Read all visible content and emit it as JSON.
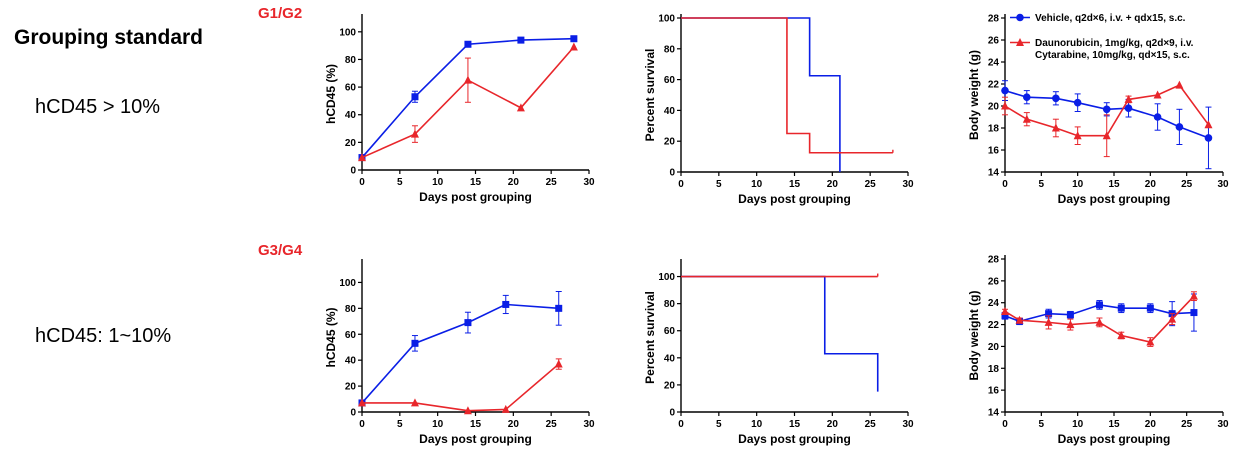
{
  "page": {
    "heading": "Grouping standard",
    "rows": [
      {
        "group_label": "G1/G2",
        "criterion": "hCD45 > 10%"
      },
      {
        "group_label": "G3/G4",
        "criterion": "hCD45: 1~10%"
      }
    ]
  },
  "colors": {
    "blue": "#0a1ee6",
    "red": "#e8262b",
    "group_label": "#e8262b"
  },
  "chart_data": [
    {
      "type": "line",
      "xlabel": "Days post grouping",
      "ylabel": "hCD45 (%)",
      "xlim": [
        0,
        30
      ],
      "xticks": [
        0,
        5,
        10,
        15,
        20,
        25,
        30
      ],
      "ylim": [
        0,
        110
      ],
      "yticks": [
        0,
        20,
        40,
        60,
        80,
        100
      ],
      "series": [
        {
          "color": "#0a1ee6",
          "marker": "square",
          "x": [
            0,
            7,
            14,
            21,
            28
          ],
          "y": [
            9,
            53,
            91,
            94,
            95
          ],
          "err": [
            1,
            4,
            2,
            1,
            0
          ]
        },
        {
          "color": "#e8262b",
          "marker": "triangle",
          "x": [
            0,
            7,
            14,
            21,
            28
          ],
          "y": [
            9,
            26,
            65,
            45,
            89
          ],
          "err": [
            0,
            6,
            16,
            0,
            0
          ]
        }
      ]
    },
    {
      "type": "line",
      "step": true,
      "xlabel": "Days post grouping",
      "ylabel": "Percent survival",
      "xlim": [
        0,
        30
      ],
      "xticks": [
        0,
        5,
        10,
        15,
        20,
        25,
        30
      ],
      "ylim": [
        0,
        100
      ],
      "yticks": [
        0,
        20,
        40,
        60,
        80,
        100
      ],
      "series": [
        {
          "color": "#0a1ee6",
          "x": [
            0,
            17,
            17,
            21,
            21
          ],
          "y": [
            100,
            100,
            62.5,
            62.5,
            0
          ]
        },
        {
          "color": "#e8262b",
          "x": [
            0,
            14,
            14,
            17,
            17,
            28
          ],
          "y": [
            100,
            100,
            25,
            25,
            12.5,
            12.5
          ]
        }
      ]
    },
    {
      "type": "line",
      "xlabel": "Days post grouping",
      "ylabel": "Body weight (g)",
      "xlim": [
        0,
        30
      ],
      "xticks": [
        0,
        5,
        10,
        15,
        20,
        25,
        30
      ],
      "ylim": [
        14,
        28
      ],
      "yticks": [
        14,
        16,
        18,
        20,
        22,
        24,
        26,
        28
      ],
      "legend_position": "top",
      "series": [
        {
          "name": "Vehicle, q2d×6, i.v. + qdx15, s.c.",
          "color": "#0a1ee6",
          "marker": "circle",
          "x": [
            0,
            3,
            7,
            10,
            14,
            17,
            21,
            24,
            28
          ],
          "y": [
            21.4,
            20.8,
            20.7,
            20.3,
            19.7,
            19.8,
            19.0,
            18.1,
            17.1
          ],
          "err": [
            0.9,
            0.6,
            0.6,
            0.8,
            0.6,
            0.8,
            1.2,
            1.6,
            2.8
          ]
        },
        {
          "name": "Daunorubicin, 1mg/kg, q2d×9, i.v.",
          "name_line2": "Cytarabine, 10mg/kg, qd×15, s.c.",
          "color": "#e8262b",
          "marker": "triangle",
          "x": [
            0,
            3,
            7,
            10,
            14,
            17,
            21,
            24,
            28
          ],
          "y": [
            20.0,
            18.8,
            18.0,
            17.3,
            17.3,
            20.6,
            21.0,
            21.9,
            18.3
          ],
          "err": [
            0.8,
            0.6,
            0.8,
            0.8,
            1.9,
            0.3,
            0.0,
            0.0,
            0.0
          ]
        }
      ]
    },
    {
      "type": "line",
      "xlabel": "Days post grouping",
      "ylabel": "hCD45 (%)",
      "xlim": [
        0,
        30
      ],
      "xticks": [
        0,
        5,
        10,
        15,
        20,
        25,
        30
      ],
      "ylim": [
        0,
        115
      ],
      "yticks": [
        0,
        20,
        40,
        60,
        80,
        100
      ],
      "series": [
        {
          "color": "#0a1ee6",
          "marker": "square",
          "x": [
            0,
            7,
            14,
            19,
            26
          ],
          "y": [
            7,
            53,
            69,
            83,
            80
          ],
          "err": [
            0,
            6,
            8,
            7,
            13
          ]
        },
        {
          "color": "#e8262b",
          "marker": "triangle",
          "x": [
            0,
            7,
            14,
            19,
            26
          ],
          "y": [
            7,
            7,
            1,
            2,
            37
          ],
          "err": [
            0,
            0,
            0,
            0,
            4
          ]
        }
      ]
    },
    {
      "type": "line",
      "step": true,
      "xlabel": "Days post grouping",
      "ylabel": "Percent survival",
      "xlim": [
        0,
        30
      ],
      "xticks": [
        0,
        5,
        10,
        15,
        20,
        25,
        30
      ],
      "ylim": [
        0,
        110
      ],
      "yticks": [
        0,
        20,
        40,
        60,
        80,
        100
      ],
      "series": [
        {
          "color": "#0a1ee6",
          "x": [
            0,
            19,
            19,
            26,
            26
          ],
          "y": [
            100,
            100,
            43,
            43,
            15
          ]
        },
        {
          "color": "#e8262b",
          "x": [
            0,
            26
          ],
          "y": [
            100,
            100
          ]
        }
      ]
    },
    {
      "type": "line",
      "xlabel": "Days post grouping",
      "ylabel": "Body weight (g)",
      "xlim": [
        0,
        30
      ],
      "xticks": [
        0,
        5,
        10,
        15,
        20,
        25,
        30
      ],
      "ylim": [
        14,
        28
      ],
      "yticks": [
        14,
        16,
        18,
        20,
        22,
        24,
        26,
        28
      ],
      "series": [
        {
          "color": "#0a1ee6",
          "marker": "square",
          "x": [
            0,
            2,
            6,
            9,
            13,
            16,
            20,
            23,
            26
          ],
          "y": [
            22.8,
            22.3,
            23.0,
            22.9,
            23.8,
            23.5,
            23.5,
            23.0,
            23.1
          ],
          "err": [
            0.3,
            0.3,
            0.4,
            0.3,
            0.4,
            0.4,
            0.4,
            1.1,
            1.7
          ]
        },
        {
          "color": "#e8262b",
          "marker": "triangle",
          "x": [
            0,
            2,
            6,
            9,
            13,
            16,
            20,
            23,
            26
          ],
          "y": [
            23.2,
            22.4,
            22.2,
            22.0,
            22.2,
            21.0,
            20.4,
            22.5,
            24.6
          ],
          "err": [
            0.2,
            0.2,
            0.6,
            0.5,
            0.4,
            0.3,
            0.4,
            0.5,
            0.4
          ]
        }
      ]
    }
  ]
}
